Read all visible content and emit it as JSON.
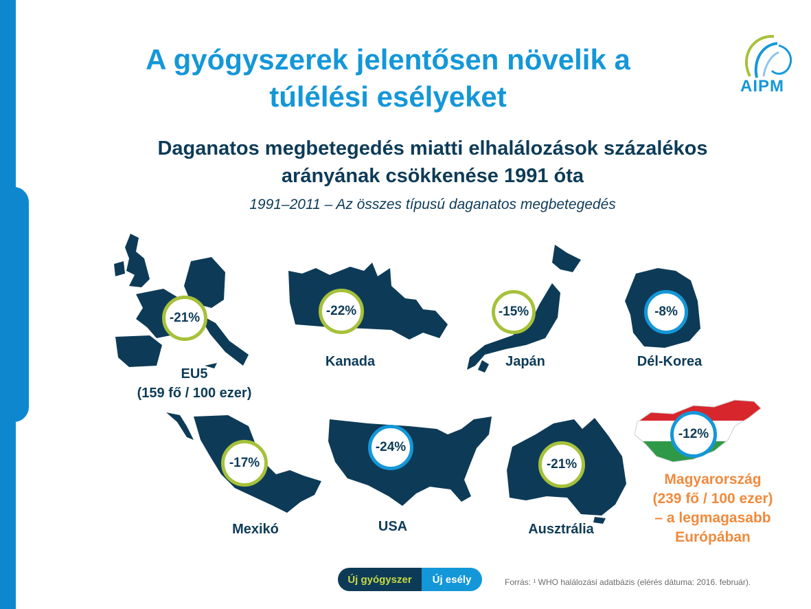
{
  "title_line1": "A gyógyszerek jelentősen növelik a",
  "title_line2": "túlélési esélyeket",
  "subtitle_line1": "Daganatos megbetegedés miatti elhalálozások százalékos",
  "subtitle_line2": "arányának csökkenése 1991 óta",
  "range": "1991–2011 – Az összes típusú daganatos megbetegedés",
  "logo_text": "AIPM",
  "regions": [
    {
      "label": "EU5",
      "sub": "(159 fő / 100 ezer)",
      "value": "-21%"
    },
    {
      "label": "Kanada",
      "value": "-22%"
    },
    {
      "label": "Japán",
      "value": "-15%"
    },
    {
      "label": "Dél-Korea",
      "value": "-8%"
    },
    {
      "label": "Mexikó",
      "value": "-17%"
    },
    {
      "label": "USA",
      "value": "-24%"
    },
    {
      "label": "Ausztrália",
      "value": "-21%"
    }
  ],
  "hungary": {
    "value": "-12%",
    "line1": "Magyarország",
    "line2": "(239 fő / 100 ezer)",
    "line3": "– a legmagasabb",
    "line4": "Európában"
  },
  "pill_left": "Új gyógyszer",
  "pill_right": "Új esély",
  "source": "Forrás: ¹ WHO halálozási adatbázis (elérés dátuma: 2016. február).",
  "colors": {
    "accent": "#1497d8",
    "navy": "#0d3b57",
    "green": "#a6c13a",
    "orange": "#f08a3c"
  }
}
